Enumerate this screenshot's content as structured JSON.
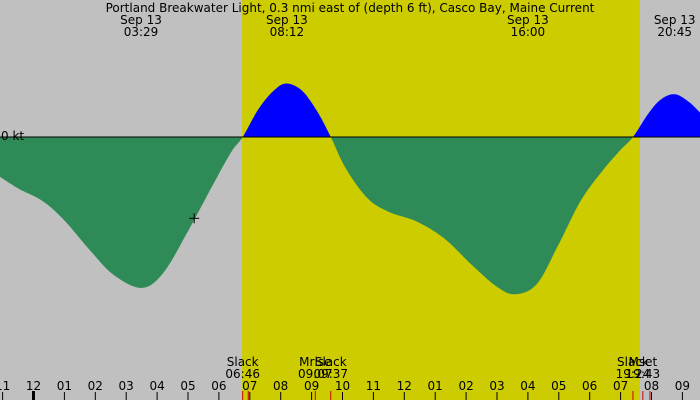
{
  "chart_data": {
    "type": "area",
    "title": "Portland Breakwater Light, 0.3 nmi east of (depth 6 ft), Casco Bay, Maine Current",
    "ylabel": "kt",
    "zero_label": "0 kt",
    "x_unit": "hour of day (hours after Sep 13 00:00)",
    "xlim": [
      -1.1,
      33.35
    ],
    "ylim": [
      -1.47,
      0.85
    ],
    "daylight": {
      "start": 6.75,
      "end": 19.62
    },
    "colors": {
      "background": "#c0c0c0",
      "daylight": "#cccc00",
      "flood": "#0000ff",
      "ebb": "#2e8b57",
      "marker": "#cc0000"
    },
    "header_times": [
      {
        "date": "Sep 13",
        "time": "03:29",
        "x": 3.48
      },
      {
        "date": "Sep 13",
        "time": "08:12",
        "x": 8.2
      },
      {
        "date": "Sep 13",
        "time": "16:00",
        "x": 16.0
      },
      {
        "date": "Sep 13",
        "time": "20:45",
        "x": 20.75
      }
    ],
    "event_labels": [
      {
        "name": "Slack",
        "time": "06:46",
        "x": 6.77
      },
      {
        "name": "Mrise",
        "time": "09:07",
        "x": 9.12
      },
      {
        "name": "Slack",
        "time": "09:37",
        "x": 9.62
      },
      {
        "name": "Slack",
        "time": "19:24",
        "x": 19.4
      },
      {
        "name": "Mset",
        "time": "19:43",
        "x": 19.72
      }
    ],
    "tick_labels": [
      {
        "label": "11",
        "x": -1
      },
      {
        "label": "12",
        "x": 0
      },
      {
        "label": "01",
        "x": 1
      },
      {
        "label": "02",
        "x": 2
      },
      {
        "label": "03",
        "x": 3
      },
      {
        "label": "04",
        "x": 4
      },
      {
        "label": "05",
        "x": 5
      },
      {
        "label": "06",
        "x": 6
      },
      {
        "label": "07",
        "x": 7
      },
      {
        "label": "08",
        "x": 8
      },
      {
        "label": "09",
        "x": 9
      },
      {
        "label": "10",
        "x": 10
      },
      {
        "label": "11",
        "x": 11
      },
      {
        "label": "12",
        "x": 12
      },
      {
        "label": "01",
        "x": 13
      },
      {
        "label": "02",
        "x": 14
      },
      {
        "label": "03",
        "x": 15
      },
      {
        "label": "04",
        "x": 16
      },
      {
        "label": "05",
        "x": 17
      },
      {
        "label": "06",
        "x": 18
      },
      {
        "label": "07",
        "x": 19
      },
      {
        "label": "08",
        "x": 20
      },
      {
        "label": "09",
        "x": 21
      }
    ],
    "event_marks": [
      6.77,
      6.95,
      9.12,
      9.62,
      19.4,
      19.72,
      19.95
    ],
    "midnight_x": 0,
    "current_time_marker": {
      "x": 5.2,
      "y": -0.76
    },
    "series": [
      {
        "x": -1.15,
        "y": -0.36
      },
      {
        "x": -0.5,
        "y": -0.48
      },
      {
        "x": 0.3,
        "y": -0.6
      },
      {
        "x": 1.0,
        "y": -0.78
      },
      {
        "x": 1.8,
        "y": -1.05
      },
      {
        "x": 2.6,
        "y": -1.29
      },
      {
        "x": 3.5,
        "y": -1.41
      },
      {
        "x": 4.2,
        "y": -1.27
      },
      {
        "x": 5.0,
        "y": -0.88
      },
      {
        "x": 5.8,
        "y": -0.45
      },
      {
        "x": 6.4,
        "y": -0.14
      },
      {
        "x": 6.77,
        "y": 0.0
      },
      {
        "x": 7.3,
        "y": 0.27
      },
      {
        "x": 7.8,
        "y": 0.44
      },
      {
        "x": 8.2,
        "y": 0.5
      },
      {
        "x": 8.7,
        "y": 0.43
      },
      {
        "x": 9.2,
        "y": 0.23
      },
      {
        "x": 9.62,
        "y": 0.0
      },
      {
        "x": 10.1,
        "y": -0.29
      },
      {
        "x": 10.8,
        "y": -0.57
      },
      {
        "x": 11.5,
        "y": -0.7
      },
      {
        "x": 12.4,
        "y": -0.79
      },
      {
        "x": 13.3,
        "y": -0.95
      },
      {
        "x": 14.2,
        "y": -1.2
      },
      {
        "x": 15.0,
        "y": -1.4
      },
      {
        "x": 15.6,
        "y": -1.47
      },
      {
        "x": 16.3,
        "y": -1.37
      },
      {
        "x": 17.0,
        "y": -1.0
      },
      {
        "x": 17.7,
        "y": -0.6
      },
      {
        "x": 18.4,
        "y": -0.32
      },
      {
        "x": 19.0,
        "y": -0.12
      },
      {
        "x": 19.4,
        "y": 0.0
      },
      {
        "x": 19.9,
        "y": 0.22
      },
      {
        "x": 20.3,
        "y": 0.35
      },
      {
        "x": 20.75,
        "y": 0.4
      },
      {
        "x": 21.2,
        "y": 0.33
      },
      {
        "x": 21.6,
        "y": 0.22
      }
    ]
  }
}
